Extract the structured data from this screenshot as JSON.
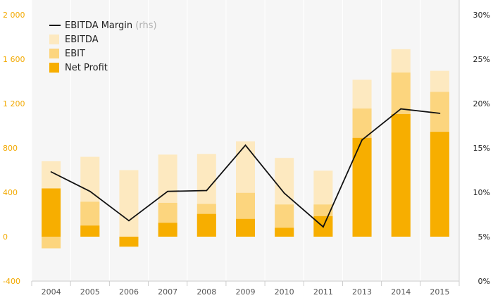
{
  "chart_data": {
    "type": "bar",
    "categories": [
      "2004",
      "2005",
      "2006",
      "2007",
      "2008",
      "2009",
      "2010",
      "2011",
      "2013",
      "2014",
      "2015"
    ],
    "y_left": {
      "min": -400,
      "max": 2000,
      "ticks": [
        -400,
        0,
        400,
        800,
        1200,
        1600,
        2000
      ],
      "tick_labels": [
        "-400",
        "0",
        "400",
        "800",
        "1 200",
        "1 600",
        "2 000"
      ]
    },
    "y_right": {
      "min": 0,
      "max": 30,
      "ticks": [
        0,
        5,
        10,
        15,
        20,
        25,
        30
      ],
      "tick_labels": [
        "0%",
        "5%",
        "10%",
        "15%",
        "20%",
        "25%",
        "30%"
      ]
    },
    "series": [
      {
        "name": "EBITDA",
        "kind": "bar",
        "color": "#fde9c0",
        "values": [
          680,
          720,
          600,
          740,
          745,
          860,
          710,
          595,
          1415,
          1690,
          1495
        ]
      },
      {
        "name": "EBIT",
        "kind": "bar",
        "color": "#fcd57e",
        "values": [
          -105,
          315,
          -30,
          305,
          295,
          395,
          290,
          290,
          1155,
          1480,
          1305
        ]
      },
      {
        "name": "Net Profit",
        "kind": "bar",
        "color": "#f7ae00",
        "values": [
          435,
          100,
          -90,
          125,
          205,
          160,
          80,
          185,
          890,
          1105,
          945
        ]
      },
      {
        "name": "EBITDA Margin",
        "suffix": "(rhs)",
        "kind": "line",
        "axis": "right",
        "color": "#111111",
        "values": [
          12.3,
          10.1,
          6.8,
          10.1,
          10.2,
          15.3,
          9.9,
          6.1,
          15.9,
          19.4,
          18.9
        ]
      }
    ],
    "legend": {
      "position": "top-left"
    },
    "grid": "vertical"
  }
}
